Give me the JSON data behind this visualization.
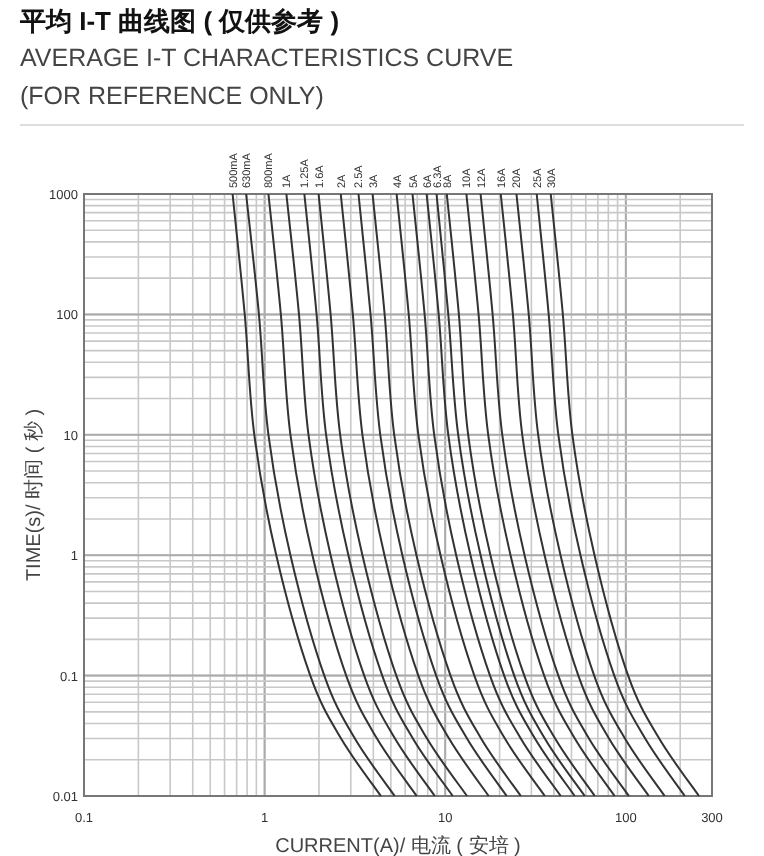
{
  "chart_data": {
    "type": "line",
    "title": "平均 I-T 曲线图 ( 仅供参考 )",
    "subtitle": "AVERAGE I-T CHARACTERISTICS CURVE (FOR REFERENCE ONLY)",
    "xlabel": "CURRENT(A)/ 电流 ( 安培 )",
    "ylabel": "TIME(s)/ 时间 ( 秒 )",
    "log": "xy",
    "grid": true,
    "xlim": [
      0.1,
      300
    ],
    "xticks": [
      0.1,
      1,
      10,
      100,
      300
    ],
    "ylim": [
      0.01,
      1000
    ],
    "yticks": [
      0.01,
      0.1,
      1,
      10,
      100,
      1000
    ],
    "series": [
      {
        "name": "500mA",
        "color": "#333333",
        "x": [
          0.665,
          0.776,
          0.877,
          1.16,
          1.79,
          2.65,
          4.4
        ],
        "values": [
          1000,
          100,
          10,
          1,
          0.1,
          0.03,
          0.01
        ]
      },
      {
        "name": "630mA",
        "color": "#333333",
        "x": [
          0.79,
          0.93,
          1.05,
          1.39,
          2.14,
          3.16,
          5.25
        ],
        "values": [
          1000,
          100,
          10,
          1,
          0.1,
          0.03,
          0.01
        ]
      },
      {
        "name": "800mA",
        "color": "#333333",
        "x": [
          1.05,
          1.23,
          1.39,
          1.84,
          2.83,
          4.19,
          6.95
        ],
        "values": [
          1000,
          100,
          10,
          1,
          0.1,
          0.03,
          0.01
        ]
      },
      {
        "name": "1A",
        "color": "#333333",
        "x": [
          1.32,
          1.55,
          1.75,
          2.32,
          3.56,
          5.27,
          8.75
        ],
        "values": [
          1000,
          100,
          10,
          1,
          0.1,
          0.03,
          0.01
        ]
      },
      {
        "name": "1.25A",
        "color": "#333333",
        "x": [
          1.66,
          1.94,
          2.19,
          2.91,
          4.48,
          6.62,
          11.0
        ],
        "values": [
          1000,
          100,
          10,
          1,
          0.1,
          0.03,
          0.01
        ]
      },
      {
        "name": "1.6A",
        "color": "#333333",
        "x": [
          1.99,
          2.32,
          2.62,
          3.48,
          5.36,
          7.93,
          13.2
        ],
        "values": [
          1000,
          100,
          10,
          1,
          0.1,
          0.03,
          0.01
        ]
      },
      {
        "name": "2A",
        "color": "#333333",
        "x": [
          2.64,
          3.08,
          3.48,
          4.61,
          7.1,
          10.5,
          17.4
        ],
        "values": [
          1000,
          100,
          10,
          1,
          0.1,
          0.03,
          0.01
        ]
      },
      {
        "name": "2.5A",
        "color": "#333333",
        "x": [
          3.31,
          3.86,
          4.37,
          5.79,
          8.91,
          13.2,
          21.9
        ],
        "values": [
          1000,
          100,
          10,
          1,
          0.1,
          0.03,
          0.01
        ]
      },
      {
        "name": "3A",
        "color": "#333333",
        "x": [
          3.96,
          4.62,
          5.22,
          6.93,
          10.7,
          15.8,
          26.2
        ],
        "values": [
          1000,
          100,
          10,
          1,
          0.1,
          0.03,
          0.01
        ]
      },
      {
        "name": "4A",
        "color": "#333333",
        "x": [
          5.38,
          6.28,
          7.1,
          9.42,
          14.5,
          21.4,
          35.6
        ],
        "values": [
          1000,
          100,
          10,
          1,
          0.1,
          0.03,
          0.01
        ]
      },
      {
        "name": "5A",
        "color": "#333333",
        "x": [
          6.59,
          7.69,
          8.69,
          11.5,
          17.7,
          26.2,
          43.6
        ],
        "values": [
          1000,
          100,
          10,
          1,
          0.1,
          0.03,
          0.01
        ]
      },
      {
        "name": "6A",
        "color": "#333333",
        "x": [
          7.89,
          9.2,
          10.4,
          13.8,
          21.2,
          31.4,
          52.1
        ],
        "values": [
          1000,
          100,
          10,
          1,
          0.1,
          0.03,
          0.01
        ]
      },
      {
        "name": "6.3A",
        "color": "#333333",
        "x": [
          8.95,
          10.4,
          11.8,
          15.7,
          24.1,
          35.6,
          59.2
        ],
        "values": [
          1000,
          100,
          10,
          1,
          0.1,
          0.03,
          0.01
        ]
      },
      {
        "name": "8A",
        "color": "#333333",
        "x": [
          10.2,
          11.9,
          13.4,
          17.8,
          27.4,
          40.6,
          67.3
        ],
        "values": [
          1000,
          100,
          10,
          1,
          0.1,
          0.03,
          0.01
        ]
      },
      {
        "name": "10A",
        "color": "#333333",
        "x": [
          13.1,
          15.3,
          17.3,
          23.0,
          35.3,
          52.2,
          86.7
        ],
        "values": [
          1000,
          100,
          10,
          1,
          0.1,
          0.03,
          0.01
        ]
      },
      {
        "name": "12A",
        "color": "#333333",
        "x": [
          15.7,
          18.3,
          20.7,
          27.5,
          42.3,
          62.5,
          104
        ],
        "values": [
          1000,
          100,
          10,
          1,
          0.1,
          0.03,
          0.01
        ]
      },
      {
        "name": "16A",
        "color": "#333333",
        "x": [
          20.3,
          23.7,
          26.7,
          35.5,
          54.6,
          80.7,
          134
        ],
        "values": [
          1000,
          100,
          10,
          1,
          0.1,
          0.03,
          0.01
        ]
      },
      {
        "name": "20A",
        "color": "#333333",
        "x": [
          24.8,
          29.0,
          32.7,
          43.5,
          66.8,
          98.9,
          164
        ],
        "values": [
          1000,
          100,
          10,
          1,
          0.1,
          0.03,
          0.01
        ]
      },
      {
        "name": "25A",
        "color": "#333333",
        "x": [
          32.1,
          37.4,
          42.3,
          56.1,
          86.3,
          128,
          212
        ],
        "values": [
          1000,
          100,
          10,
          1,
          0.1,
          0.03,
          0.01
        ]
      },
      {
        "name": "30A",
        "color": "#333333",
        "x": [
          38.4,
          44.8,
          50.6,
          67.1,
          103,
          153,
          254
        ],
        "values": [
          1000,
          100,
          10,
          1,
          0.1,
          0.03,
          0.01
        ]
      }
    ]
  }
}
